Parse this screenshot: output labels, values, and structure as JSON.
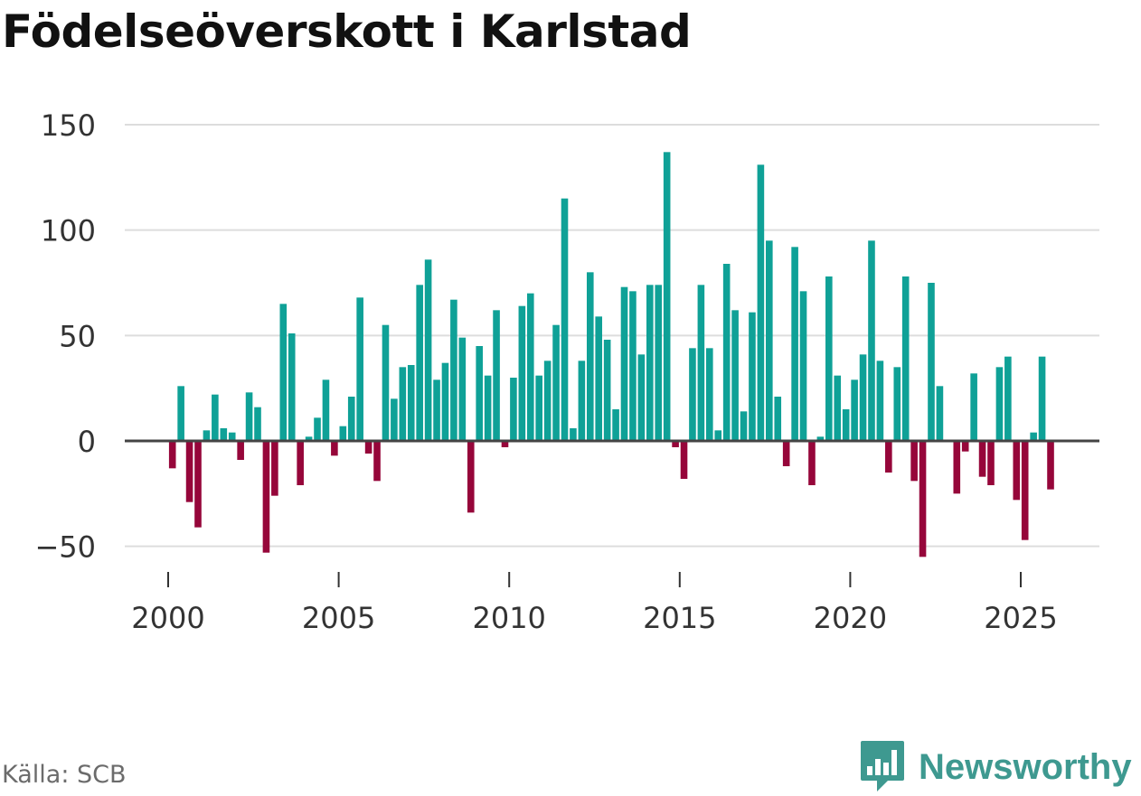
{
  "title": "Födelseöverskott i Karlstad",
  "source": "Källa: SCB",
  "brand": "Newsworthy",
  "colors": {
    "positive": "#0fa197",
    "negative": "#96063a",
    "grid": "#dddddd",
    "zero": "#444444",
    "brand": "#3e9990"
  },
  "chart_data": {
    "type": "bar",
    "title": "Födelseöverskott i Karlstad",
    "xlabel": "",
    "ylabel": "",
    "ylim": [
      -60,
      150
    ],
    "y_ticks": [
      150,
      100,
      50,
      0,
      -50
    ],
    "y_tick_labels": [
      "150",
      "100",
      "50",
      "0",
      "−50"
    ],
    "x_ticks": [
      2000,
      2005,
      2010,
      2015,
      2020,
      2025
    ],
    "x_tick_labels": [
      "2000",
      "2005",
      "2010",
      "2015",
      "2020",
      "2025"
    ],
    "grid": true,
    "frequency": "quarterly",
    "start": "2000Q1",
    "categories": [
      "2000Q1",
      "2000Q2",
      "2000Q3",
      "2000Q4",
      "2001Q1",
      "2001Q2",
      "2001Q3",
      "2001Q4",
      "2002Q1",
      "2002Q2",
      "2002Q3",
      "2002Q4",
      "2003Q1",
      "2003Q2",
      "2003Q3",
      "2003Q4",
      "2004Q1",
      "2004Q2",
      "2004Q3",
      "2004Q4",
      "2005Q1",
      "2005Q2",
      "2005Q3",
      "2005Q4",
      "2006Q1",
      "2006Q2",
      "2006Q3",
      "2006Q4",
      "2007Q1",
      "2007Q2",
      "2007Q3",
      "2007Q4",
      "2008Q1",
      "2008Q2",
      "2008Q3",
      "2008Q4",
      "2009Q1",
      "2009Q2",
      "2009Q3",
      "2009Q4",
      "2010Q1",
      "2010Q2",
      "2010Q3",
      "2010Q4",
      "2011Q1",
      "2011Q2",
      "2011Q3",
      "2011Q4",
      "2012Q1",
      "2012Q2",
      "2012Q3",
      "2012Q4",
      "2013Q1",
      "2013Q2",
      "2013Q3",
      "2013Q4",
      "2014Q1",
      "2014Q2",
      "2014Q3",
      "2014Q4",
      "2015Q1",
      "2015Q2",
      "2015Q3",
      "2015Q4",
      "2016Q1",
      "2016Q2",
      "2016Q3",
      "2016Q4",
      "2017Q1",
      "2017Q2",
      "2017Q3",
      "2017Q4",
      "2018Q1",
      "2018Q2",
      "2018Q3",
      "2018Q4",
      "2019Q1",
      "2019Q2",
      "2019Q3",
      "2019Q4",
      "2020Q1",
      "2020Q2",
      "2020Q3",
      "2020Q4",
      "2021Q1",
      "2021Q2",
      "2021Q3",
      "2021Q4",
      "2022Q1",
      "2022Q2",
      "2022Q3",
      "2022Q4",
      "2023Q1",
      "2023Q2",
      "2023Q3",
      "2023Q4",
      "2024Q1",
      "2024Q2",
      "2024Q3",
      "2024Q4",
      "2025Q1",
      "2025Q2",
      "2025Q3",
      "2025Q4"
    ],
    "values": [
      -13,
      26,
      -29,
      -41,
      5,
      22,
      6,
      4,
      -9,
      23,
      16,
      -53,
      -26,
      65,
      51,
      -21,
      2,
      11,
      29,
      -7,
      7,
      21,
      68,
      -6,
      -19,
      55,
      20,
      35,
      36,
      74,
      86,
      29,
      37,
      67,
      49,
      -34,
      45,
      31,
      62,
      -3,
      30,
      64,
      70,
      31,
      38,
      55,
      115,
      6,
      38,
      80,
      59,
      48,
      15,
      73,
      71,
      41,
      74,
      74,
      137,
      -3,
      -18,
      44,
      74,
      44,
      5,
      84,
      62,
      14,
      61,
      131,
      95,
      21,
      -12,
      92,
      71,
      -21,
      2,
      78,
      31,
      15,
      29,
      41,
      95,
      38,
      -15,
      35,
      78,
      -19,
      -55,
      75,
      26,
      0,
      -25,
      -5,
      32,
      -17,
      -21,
      35,
      40,
      -28,
      -47,
      4,
      40,
      -23
    ]
  }
}
